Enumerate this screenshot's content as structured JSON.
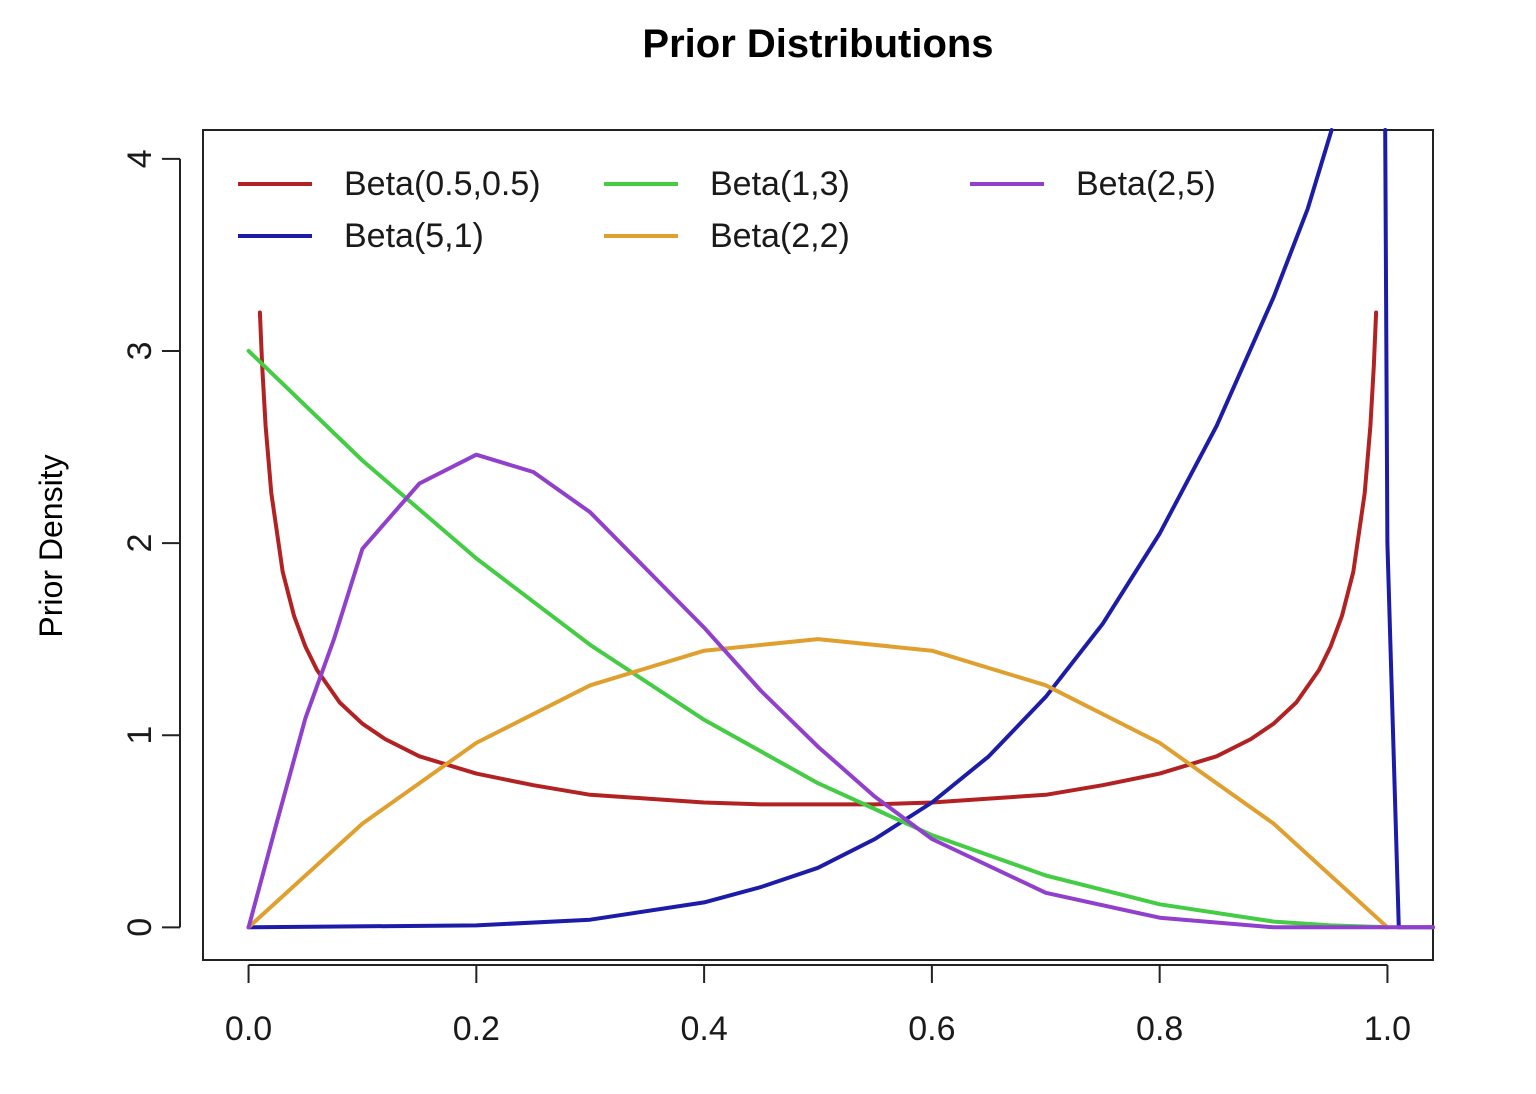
{
  "chart_data": {
    "type": "line",
    "title": "Prior Distributions",
    "xlabel": "",
    "ylabel": "Prior Density",
    "xlim": [
      -0.04,
      1.04
    ],
    "ylim": [
      -0.17,
      4.15
    ],
    "x_ticks": [
      "0.0",
      "0.2",
      "0.4",
      "0.6",
      "0.8",
      "1.0"
    ],
    "y_ticks": [
      "0",
      "1",
      "2",
      "3",
      "4"
    ],
    "grid": false,
    "legend_position": "top",
    "series": [
      {
        "name": "Beta(0.5,0.5)",
        "color": "#b22222",
        "points": [
          [
            0.01,
            3.2
          ],
          [
            0.012,
            2.92
          ],
          [
            0.015,
            2.61
          ],
          [
            0.02,
            2.26
          ],
          [
            0.03,
            1.85
          ],
          [
            0.04,
            1.62
          ],
          [
            0.05,
            1.46
          ],
          [
            0.06,
            1.34
          ],
          [
            0.08,
            1.17
          ],
          [
            0.1,
            1.06
          ],
          [
            0.12,
            0.98
          ],
          [
            0.15,
            0.89
          ],
          [
            0.2,
            0.8
          ],
          [
            0.25,
            0.74
          ],
          [
            0.3,
            0.69
          ],
          [
            0.35,
            0.67
          ],
          [
            0.4,
            0.65
          ],
          [
            0.45,
            0.64
          ],
          [
            0.5,
            0.64
          ],
          [
            0.55,
            0.64
          ],
          [
            0.6,
            0.65
          ],
          [
            0.65,
            0.67
          ],
          [
            0.7,
            0.69
          ],
          [
            0.75,
            0.74
          ],
          [
            0.8,
            0.8
          ],
          [
            0.85,
            0.89
          ],
          [
            0.88,
            0.98
          ],
          [
            0.9,
            1.06
          ],
          [
            0.92,
            1.17
          ],
          [
            0.94,
            1.34
          ],
          [
            0.95,
            1.46
          ],
          [
            0.96,
            1.62
          ],
          [
            0.97,
            1.85
          ],
          [
            0.98,
            2.26
          ],
          [
            0.985,
            2.61
          ],
          [
            0.988,
            2.92
          ],
          [
            0.99,
            3.2
          ]
        ]
      },
      {
        "name": "Beta(5,1)",
        "color": "#1c1ca8",
        "points": [
          [
            0.0,
            0.0
          ],
          [
            0.2,
            0.01
          ],
          [
            0.3,
            0.04
          ],
          [
            0.4,
            0.13
          ],
          [
            0.45,
            0.21
          ],
          [
            0.5,
            0.31
          ],
          [
            0.55,
            0.46
          ],
          [
            0.6,
            0.65
          ],
          [
            0.65,
            0.89
          ],
          [
            0.7,
            1.2
          ],
          [
            0.75,
            1.58
          ],
          [
            0.8,
            2.05
          ],
          [
            0.85,
            2.61
          ],
          [
            0.9,
            3.28
          ],
          [
            0.93,
            3.74
          ],
          [
            0.951,
            4.15
          ]
        ],
        "drop_line": [
          [
            0.998,
            4.15
          ],
          [
            1.0,
            2.0
          ],
          [
            1.01,
            0.0
          ],
          [
            1.04,
            0.0
          ]
        ]
      },
      {
        "name": "Beta(1,3)",
        "color": "#44cc44",
        "points": [
          [
            0.0,
            3.0
          ],
          [
            0.1,
            2.43
          ],
          [
            0.2,
            1.92
          ],
          [
            0.3,
            1.47
          ],
          [
            0.4,
            1.08
          ],
          [
            0.5,
            0.75
          ],
          [
            0.6,
            0.48
          ],
          [
            0.7,
            0.27
          ],
          [
            0.8,
            0.12
          ],
          [
            0.9,
            0.03
          ],
          [
            0.95,
            0.01
          ],
          [
            1.0,
            0.0
          ]
        ]
      },
      {
        "name": "Beta(2,2)",
        "color": "#e0a030",
        "points": [
          [
            0.0,
            0.0
          ],
          [
            0.1,
            0.54
          ],
          [
            0.2,
            0.96
          ],
          [
            0.3,
            1.26
          ],
          [
            0.4,
            1.44
          ],
          [
            0.5,
            1.5
          ],
          [
            0.6,
            1.44
          ],
          [
            0.7,
            1.26
          ],
          [
            0.8,
            0.96
          ],
          [
            0.9,
            0.54
          ],
          [
            1.0,
            0.0
          ]
        ]
      },
      {
        "name": "Beta(2,5)",
        "color": "#9040cc",
        "points": [
          [
            0.0,
            0.0
          ],
          [
            0.025,
            0.55
          ],
          [
            0.05,
            1.09
          ],
          [
            0.075,
            1.5
          ],
          [
            0.1,
            1.97
          ],
          [
            0.15,
            2.31
          ],
          [
            0.2,
            2.46
          ],
          [
            0.25,
            2.37
          ],
          [
            0.3,
            2.16
          ],
          [
            0.35,
            1.86
          ],
          [
            0.4,
            1.56
          ],
          [
            0.45,
            1.23
          ],
          [
            0.5,
            0.94
          ],
          [
            0.55,
            0.68
          ],
          [
            0.6,
            0.46
          ],
          [
            0.7,
            0.18
          ],
          [
            0.8,
            0.05
          ],
          [
            0.9,
            0.0
          ],
          [
            1.0,
            0.0
          ],
          [
            1.04,
            0.0
          ]
        ]
      }
    ]
  }
}
